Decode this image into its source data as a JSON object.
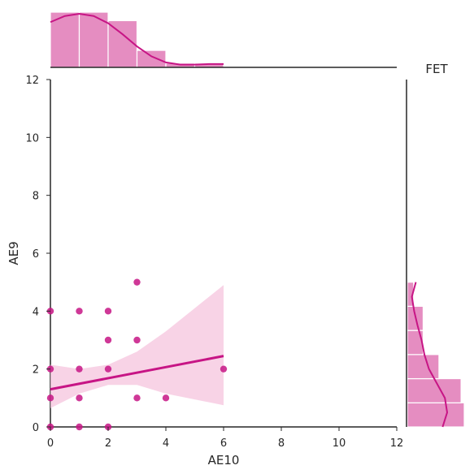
{
  "chart_data": {
    "type": "scatter",
    "title": "FET",
    "xlabel": "AE10",
    "ylabel": "AE9",
    "xlim": [
      0,
      12
    ],
    "ylim": [
      0,
      12
    ],
    "xticks": [
      "0",
      "2",
      "4",
      "6",
      "8",
      "10",
      "12"
    ],
    "yticks": [
      "0",
      "2",
      "4",
      "6",
      "8",
      "10",
      "12"
    ],
    "grid": false,
    "points": [
      {
        "x": 0,
        "y": 0
      },
      {
        "x": 0,
        "y": 1
      },
      {
        "x": 0,
        "y": 2
      },
      {
        "x": 0,
        "y": 4
      },
      {
        "x": 1,
        "y": 0
      },
      {
        "x": 1,
        "y": 1
      },
      {
        "x": 1,
        "y": 2
      },
      {
        "x": 1,
        "y": 4
      },
      {
        "x": 2,
        "y": 0
      },
      {
        "x": 2,
        "y": 2
      },
      {
        "x": 2,
        "y": 3
      },
      {
        "x": 2,
        "y": 4
      },
      {
        "x": 3,
        "y": 1
      },
      {
        "x": 3,
        "y": 3
      },
      {
        "x": 3,
        "y": 5
      },
      {
        "x": 4,
        "y": 1
      },
      {
        "x": 6,
        "y": 2
      }
    ],
    "regression": {
      "x_start": 0,
      "y_start": 1.3,
      "x_end": 6,
      "y_end": 2.45,
      "ci_band": [
        {
          "x": 0,
          "lo": 0.65,
          "hi": 2.15
        },
        {
          "x": 1,
          "lo": 1.15,
          "hi": 2.0
        },
        {
          "x": 2,
          "lo": 1.45,
          "hi": 2.15
        },
        {
          "x": 3,
          "lo": 1.45,
          "hi": 2.6
        },
        {
          "x": 4,
          "lo": 1.15,
          "hi": 3.3
        },
        {
          "x": 5,
          "lo": 0.95,
          "hi": 4.1
        },
        {
          "x": 6,
          "lo": 0.75,
          "hi": 4.9
        }
      ]
    },
    "x_marginal_hist": {
      "bins": [
        [
          0,
          1
        ],
        [
          1,
          2
        ],
        [
          2,
          3
        ],
        [
          3,
          4
        ],
        [
          4,
          5
        ],
        [
          5,
          6
        ]
      ],
      "counts": [
        13,
        13,
        11,
        4,
        1,
        1
      ]
    },
    "y_marginal_hist": {
      "bins": [
        [
          0,
          0.833
        ],
        [
          0.833,
          1.667
        ],
        [
          1.667,
          2.5
        ],
        [
          2.5,
          3.333
        ],
        [
          3.333,
          4.167
        ],
        [
          4.167,
          5.0
        ]
      ],
      "counts": [
        18,
        17,
        10,
        5,
        5,
        2
      ]
    },
    "colors": {
      "point": "#c71585",
      "line": "#c71585",
      "band": "#f5c4de",
      "hist_bar": "#e58dc1",
      "kde": "#c71585",
      "axis": "#262626"
    }
  }
}
